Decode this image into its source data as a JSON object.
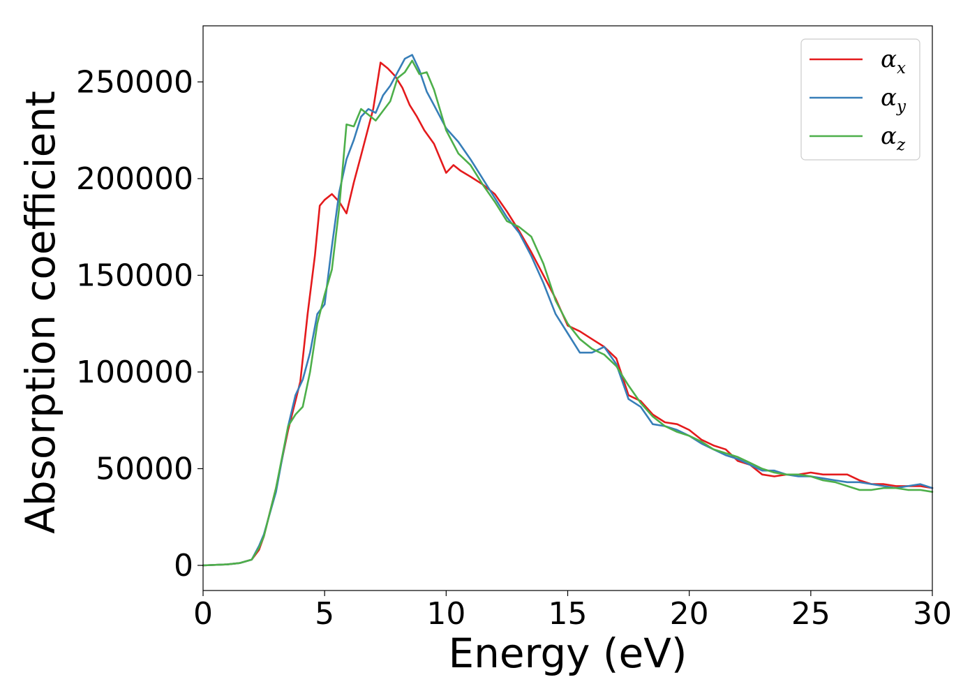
{
  "chart_data": {
    "type": "line",
    "xlabel": "Energy (eV)",
    "ylabel": "Absorption coefficient",
    "xlim": [
      0,
      30
    ],
    "ylim": [
      -13000,
      279000
    ],
    "xticks": [
      0,
      5,
      10,
      15,
      20,
      25,
      30
    ],
    "yticks": [
      0,
      50000,
      100000,
      150000,
      200000,
      250000
    ],
    "grid": false,
    "legend_position": "top-right",
    "series": [
      {
        "name": "αx",
        "name_base": "α",
        "name_sub": "x",
        "color": "#e41a1c",
        "x": [
          0,
          1,
          1.5,
          2,
          2.3,
          2.5,
          3,
          3.5,
          4,
          4.3,
          4.6,
          4.8,
          5,
          5.3,
          5.6,
          5.9,
          6.2,
          6.5,
          7,
          7.3,
          7.6,
          7.9,
          8.2,
          8.5,
          8.8,
          9.1,
          9.5,
          10,
          10.3,
          10.6,
          11,
          11.5,
          12,
          12.5,
          13,
          13.5,
          14,
          14.5,
          15,
          15.5,
          16,
          16.5,
          17,
          17.5,
          18,
          18.5,
          19,
          19.5,
          20,
          20.5,
          21,
          21.5,
          22,
          22.5,
          23,
          23.5,
          24,
          24.5,
          25,
          25.5,
          26,
          26.5,
          27,
          27.5,
          28,
          28.5,
          29,
          29.5,
          30
        ],
        "y": [
          0,
          500,
          1200,
          3000,
          8000,
          15000,
          40000,
          70000,
          95000,
          130000,
          160000,
          186000,
          189000,
          192000,
          188000,
          182000,
          198000,
          212000,
          236000,
          260000,
          257000,
          253000,
          247000,
          238000,
          232000,
          225000,
          218000,
          203000,
          207000,
          204000,
          201000,
          197000,
          192000,
          183000,
          173000,
          162000,
          150000,
          138000,
          124000,
          121000,
          117000,
          113000,
          107000,
          88000,
          85000,
          78000,
          74000,
          73000,
          70000,
          65000,
          62000,
          60000,
          54000,
          52000,
          47000,
          46000,
          47000,
          47000,
          48000,
          47000,
          47000,
          47000,
          44000,
          42000,
          42000,
          41000,
          41000,
          41000,
          40000
        ]
      },
      {
        "name": "αy",
        "name_base": "α",
        "name_sub": "y",
        "color": "#377eb8",
        "x": [
          0,
          1,
          1.5,
          2,
          2.3,
          2.5,
          3,
          3.5,
          3.8,
          4.1,
          4.4,
          4.7,
          5,
          5.3,
          5.6,
          5.9,
          6.2,
          6.5,
          6.8,
          7.1,
          7.4,
          7.7,
          8,
          8.3,
          8.6,
          8.9,
          9.2,
          9.5,
          10,
          10.5,
          11,
          11.5,
          12,
          12.5,
          13,
          13.5,
          14,
          14.5,
          15,
          15.5,
          16,
          16.5,
          17,
          17.5,
          18,
          18.5,
          19,
          19.5,
          20,
          20.5,
          21,
          21.5,
          22,
          22.5,
          23,
          23.5,
          24,
          24.5,
          25,
          25.5,
          26,
          26.5,
          27,
          27.5,
          28,
          28.5,
          29,
          29.5,
          30
        ],
        "y": [
          0,
          500,
          1200,
          3000,
          10000,
          16000,
          38000,
          72000,
          88000,
          96000,
          110000,
          130000,
          135000,
          165000,
          193000,
          210000,
          220000,
          232000,
          236000,
          234000,
          243000,
          248000,
          255000,
          262000,
          264000,
          256000,
          245000,
          238000,
          226000,
          219000,
          210000,
          200000,
          190000,
          180000,
          172000,
          160000,
          146000,
          130000,
          120000,
          110000,
          110000,
          113000,
          104000,
          86000,
          82000,
          73000,
          72000,
          70000,
          67000,
          63000,
          60000,
          57000,
          55000,
          52000,
          49000,
          49000,
          47000,
          46000,
          46000,
          45000,
          44000,
          43000,
          43000,
          42000,
          41000,
          40000,
          41000,
          42000,
          40000
        ]
      },
      {
        "name": "αz",
        "name_base": "α",
        "name_sub": "z",
        "color": "#4daf4a",
        "x": [
          0,
          1,
          1.5,
          2,
          2.3,
          2.5,
          3,
          3.5,
          3.8,
          4.1,
          4.4,
          4.7,
          5,
          5.3,
          5.6,
          5.9,
          6.2,
          6.5,
          6.8,
          7.1,
          7.4,
          7.7,
          8,
          8.3,
          8.6,
          8.9,
          9.2,
          9.5,
          10,
          10.5,
          11,
          11.5,
          12,
          12.5,
          13,
          13.5,
          14,
          14.5,
          15,
          15.5,
          16,
          16.5,
          17,
          17.5,
          18,
          18.5,
          19,
          19.5,
          20,
          20.5,
          21,
          21.5,
          22,
          22.5,
          23,
          23.5,
          24,
          24.5,
          25,
          25.5,
          26,
          26.5,
          27,
          27.5,
          28,
          28.5,
          29,
          29.5,
          30
        ],
        "y": [
          0,
          500,
          1200,
          3000,
          9000,
          15000,
          40000,
          72000,
          78000,
          82000,
          100000,
          125000,
          140000,
          153000,
          185000,
          228000,
          227000,
          236000,
          233000,
          230000,
          235000,
          240000,
          252000,
          255000,
          261000,
          254000,
          255000,
          246000,
          225000,
          213000,
          207000,
          197000,
          188000,
          178000,
          175000,
          170000,
          156000,
          137000,
          125000,
          117000,
          112000,
          109000,
          103000,
          93000,
          84000,
          77000,
          72000,
          69000,
          67000,
          64000,
          60000,
          58000,
          56000,
          53000,
          50000,
          48000,
          47000,
          47000,
          46000,
          44000,
          43000,
          41000,
          39000,
          39000,
          40000,
          40000,
          39000,
          39000,
          38000
        ]
      }
    ]
  }
}
